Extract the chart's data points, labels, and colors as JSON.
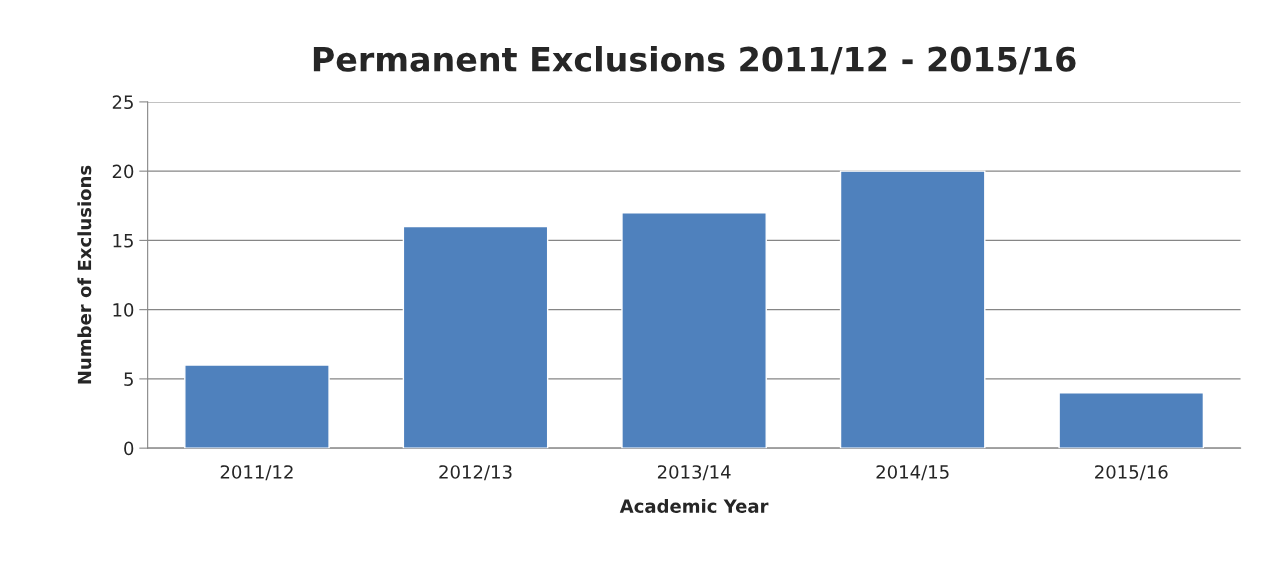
{
  "chart_data": {
    "type": "bar",
    "title": "Permanent Exclusions 2011/12 - 2015/16",
    "xlabel": "Academic Year",
    "ylabel": "Number of Exclusions",
    "categories": [
      "2011/12",
      "2012/13",
      "2013/14",
      "2014/15",
      "2015/16"
    ],
    "values": [
      6,
      16,
      17,
      20,
      4
    ],
    "color": "#4f81bd",
    "ylim": [
      0,
      25
    ],
    "yticks": [
      0,
      5,
      10,
      15,
      20,
      25
    ],
    "grid": "y",
    "legend": false
  }
}
